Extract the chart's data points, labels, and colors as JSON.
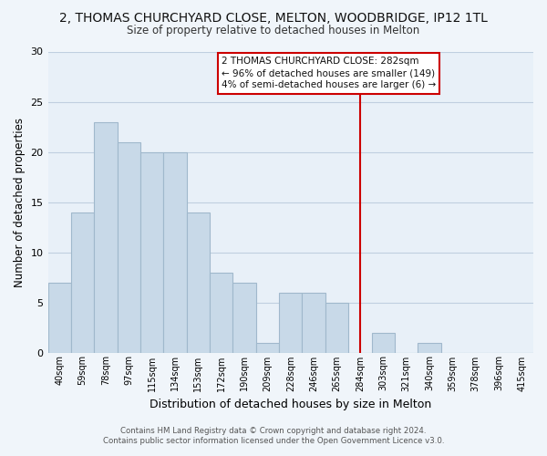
{
  "title": "2, THOMAS CHURCHYARD CLOSE, MELTON, WOODBRIDGE, IP12 1TL",
  "subtitle": "Size of property relative to detached houses in Melton",
  "xlabel": "Distribution of detached houses by size in Melton",
  "ylabel": "Number of detached properties",
  "categories": [
    "40sqm",
    "59sqm",
    "78sqm",
    "97sqm",
    "115sqm",
    "134sqm",
    "153sqm",
    "172sqm",
    "190sqm",
    "209sqm",
    "228sqm",
    "246sqm",
    "265sqm",
    "284sqm",
    "303sqm",
    "321sqm",
    "340sqm",
    "359sqm",
    "378sqm",
    "396sqm",
    "415sqm"
  ],
  "values": [
    7,
    14,
    23,
    21,
    20,
    20,
    14,
    8,
    7,
    1,
    6,
    6,
    5,
    0,
    2,
    0,
    1,
    0,
    0,
    0,
    0
  ],
  "bar_color": "#c8d9e8",
  "bar_edge_color": "#a0b8cc",
  "vline_index": 13,
  "vline_color": "#cc0000",
  "ylim": [
    0,
    30
  ],
  "yticks": [
    0,
    5,
    10,
    15,
    20,
    25,
    30
  ],
  "annotation_title": "2 THOMAS CHURCHYARD CLOSE: 282sqm",
  "annotation_line1": "← 96% of detached houses are smaller (149)",
  "annotation_line2": "4% of semi-detached houses are larger (6) →",
  "annotation_box_color": "#ffffff",
  "annotation_box_edge": "#cc0000",
  "footer_line1": "Contains HM Land Registry data © Crown copyright and database right 2024.",
  "footer_line2": "Contains public sector information licensed under the Open Government Licence v3.0.",
  "background_color": "#f0f5fa",
  "plot_bg_color": "#e8f0f8",
  "grid_color": "#c0cfe0"
}
